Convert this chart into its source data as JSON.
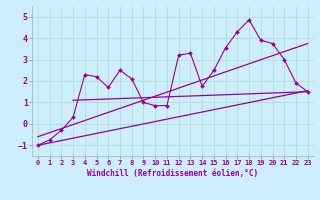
{
  "xlabel": "Windchill (Refroidissement éolien,°C)",
  "bg_color": "#cceeff",
  "line_color": "#990099",
  "grid_color": "#aaddcc",
  "xlim": [
    -0.5,
    23.5
  ],
  "ylim": [
    -1.5,
    5.5
  ],
  "xticks": [
    0,
    1,
    2,
    3,
    4,
    5,
    6,
    7,
    8,
    9,
    10,
    11,
    12,
    13,
    14,
    15,
    16,
    17,
    18,
    19,
    20,
    21,
    22,
    23
  ],
  "yticks": [
    -1,
    0,
    1,
    2,
    3,
    4,
    5
  ],
  "scatter_x": [
    0,
    1,
    2,
    3,
    4,
    5,
    6,
    7,
    8,
    9,
    10,
    11,
    12,
    13,
    14,
    15,
    16,
    17,
    18,
    19,
    20,
    21,
    22,
    23
  ],
  "scatter_y": [
    -1.0,
    -0.75,
    -0.3,
    0.3,
    2.3,
    2.2,
    1.7,
    2.5,
    2.1,
    1.0,
    0.85,
    0.85,
    3.2,
    3.3,
    1.75,
    2.5,
    3.55,
    4.3,
    4.85,
    3.9,
    3.75,
    3.0,
    1.9,
    1.5
  ],
  "trend1_x": [
    0,
    23
  ],
  "trend1_y": [
    -1.0,
    1.55
  ],
  "trend2_x": [
    0,
    23
  ],
  "trend2_y": [
    -0.6,
    3.75
  ],
  "trend3_x": [
    3,
    23
  ],
  "trend3_y": [
    1.1,
    1.5
  ]
}
